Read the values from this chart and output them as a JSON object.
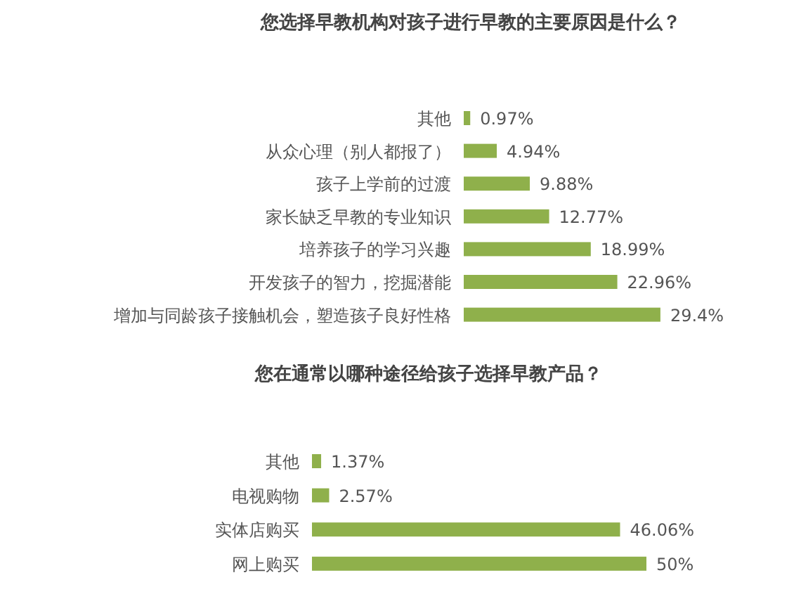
{
  "chart_data": [
    {
      "type": "bar",
      "orientation": "horizontal",
      "title": "您选择早教机构对孩子进行早教的主要原因是什么？",
      "categories": [
        "其他",
        "从众心理（别人都报了）",
        "孩子上学前的过渡",
        "家长缺乏早教的专业知识",
        "培养孩子的学习兴趣",
        "开发孩子的智力，挖掘潜能",
        "增加与同龄孩子接触机会，塑造孩子良好性格"
      ],
      "values": [
        0.97,
        4.94,
        9.88,
        12.77,
        18.99,
        22.96,
        29.4
      ],
      "value_labels": [
        "0.97%",
        "4.94%",
        "9.88%",
        "12.77%",
        "18.99%",
        "22.96%",
        "29.4%"
      ],
      "color": "#8fb04b"
    },
    {
      "type": "bar",
      "orientation": "horizontal",
      "title": "您在通常以哪种途径给孩子选择早教产品？",
      "categories": [
        "其他",
        "电视购物",
        "实体店购买",
        "网上购买"
      ],
      "values": [
        1.37,
        2.57,
        46.06,
        50
      ],
      "value_labels": [
        "1.37%",
        "2.57%",
        "46.06%",
        "50%"
      ],
      "color": "#8fb04b"
    }
  ]
}
